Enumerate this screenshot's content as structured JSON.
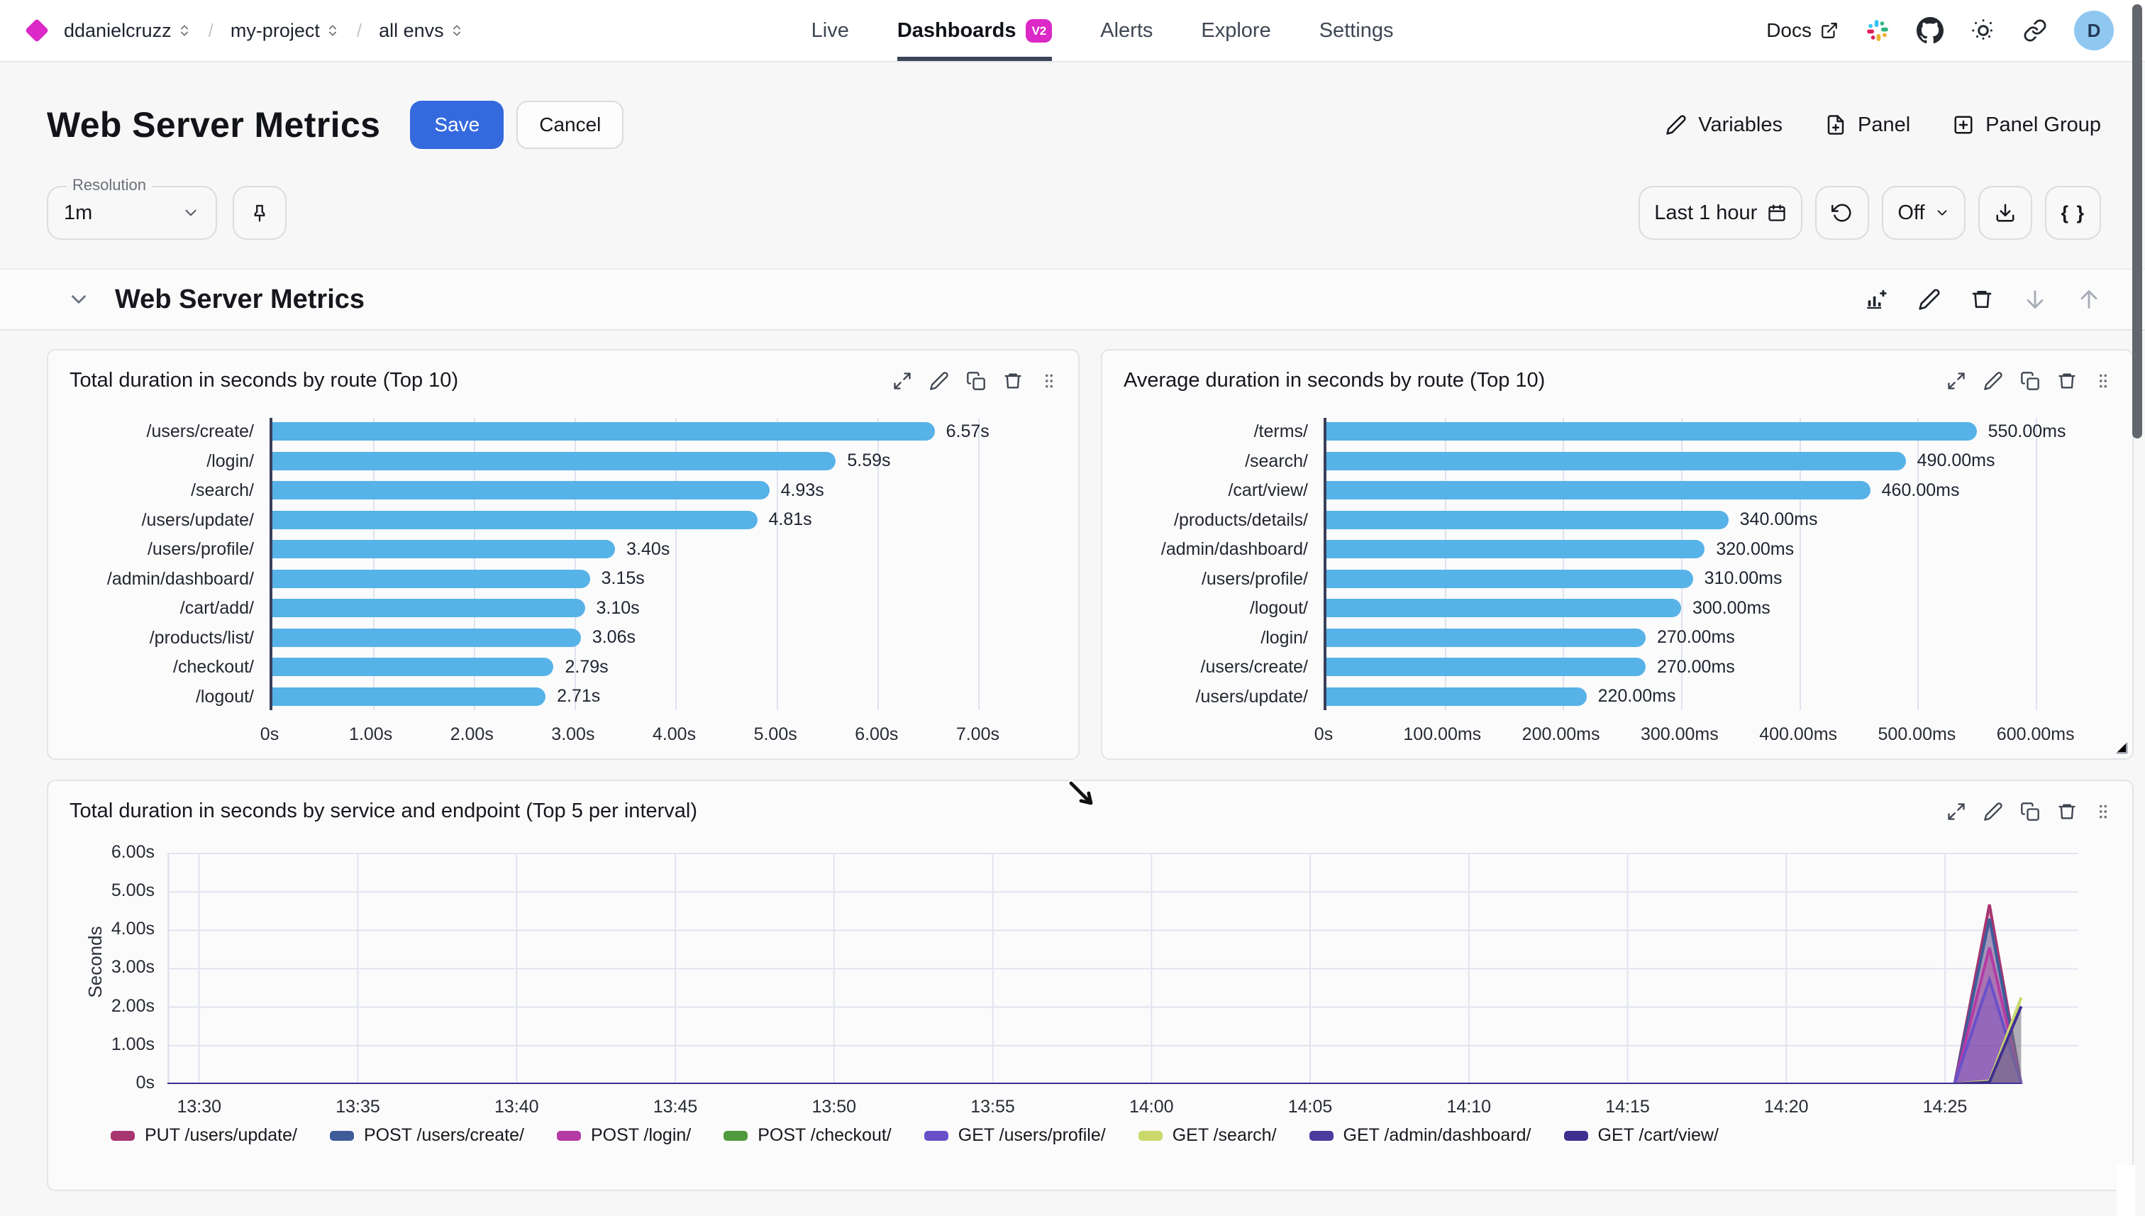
{
  "nav": {
    "breadcrumb": {
      "org": "ddanielcruzz",
      "project": "my-project",
      "env": "all envs",
      "separator": "/"
    },
    "tabs": [
      {
        "label": "Live"
      },
      {
        "label": "Dashboards",
        "badge": "V2",
        "active": true
      },
      {
        "label": "Alerts"
      },
      {
        "label": "Explore"
      },
      {
        "label": "Settings"
      }
    ],
    "docs_label": "Docs",
    "icons": [
      "external-link-icon",
      "slack-icon",
      "github-icon",
      "theme-sun-icon",
      "link-icon"
    ],
    "avatar_letter": "D"
  },
  "header": {
    "title": "Web Server Metrics",
    "save": "Save",
    "cancel": "Cancel",
    "variables": "Variables",
    "panel": "Panel",
    "panel_group": "Panel Group"
  },
  "toolbar": {
    "resolution_label": "Resolution",
    "resolution_value": "1m",
    "time_range": "Last 1 hour",
    "autorefresh": "Off",
    "json_button": "{ }"
  },
  "section": {
    "title": "Web Server Metrics"
  },
  "panels": {
    "p1_title": "Total duration in seconds by route (Top 10)",
    "p2_title": "Average duration in seconds by route (Top 10)",
    "p3_title": "Total duration in seconds by service and endpoint (Top 5 per interval)"
  },
  "colors": {
    "brand_magenta": "#DB28C6",
    "save_blue": "#3569DE",
    "bar_blue": "#57B2E8",
    "gridline": "#DFE3EE",
    "avatar_bg": "#8FC7F1",
    "scrollbar": "#62666D"
  },
  "chart_data": [
    {
      "type": "bar",
      "orientation": "horizontal",
      "title": "Total duration in seconds by route (Top 10)",
      "categories": [
        "/users/create/",
        "/login/",
        "/search/",
        "/users/update/",
        "/users/profile/",
        "/admin/dashboard/",
        "/cart/add/",
        "/products/list/",
        "/checkout/",
        "/logout/"
      ],
      "values": [
        6.57,
        5.59,
        4.93,
        4.81,
        3.4,
        3.15,
        3.1,
        3.06,
        2.79,
        2.71
      ],
      "value_labels": [
        "6.57s",
        "5.59s",
        "4.93s",
        "4.81s",
        "3.40s",
        "3.15s",
        "3.10s",
        "3.06s",
        "2.79s",
        "2.71s"
      ],
      "xmax": 7.6,
      "xticks": [
        {
          "label": "0s",
          "v": 0
        },
        {
          "label": "1.00s",
          "v": 1
        },
        {
          "label": "2.00s",
          "v": 2
        },
        {
          "label": "3.00s",
          "v": 3
        },
        {
          "label": "4.00s",
          "v": 4
        },
        {
          "label": "5.00s",
          "v": 5
        },
        {
          "label": "6.00s",
          "v": 6
        },
        {
          "label": "7.00s",
          "v": 7
        }
      ],
      "bar_color": "#57B2E8",
      "grid": true,
      "unit": "s"
    },
    {
      "type": "bar",
      "orientation": "horizontal",
      "title": "Average duration in seconds by route (Top 10)",
      "categories": [
        "/terms/",
        "/search/",
        "/cart/view/",
        "/products/details/",
        "/admin/dashboard/",
        "/users/profile/",
        "/logout/",
        "/login/",
        "/users/create/",
        "/users/update/"
      ],
      "values": [
        550,
        490,
        460,
        340,
        320,
        310,
        300,
        270,
        270,
        220
      ],
      "value_labels": [
        "550.00ms",
        "490.00ms",
        "460.00ms",
        "340.00ms",
        "320.00ms",
        "310.00ms",
        "300.00ms",
        "270.00ms",
        "270.00ms",
        "220.00ms"
      ],
      "xmax": 648,
      "xticks": [
        {
          "label": "0s",
          "v": 0
        },
        {
          "label": "100.00ms",
          "v": 100
        },
        {
          "label": "200.00ms",
          "v": 200
        },
        {
          "label": "300.00ms",
          "v": 300
        },
        {
          "label": "400.00ms",
          "v": 400
        },
        {
          "label": "500.00ms",
          "v": 500
        },
        {
          "label": "600.00ms",
          "v": 600
        }
      ],
      "bar_color": "#57B2E8",
      "grid": true,
      "unit": "ms"
    },
    {
      "type": "area",
      "title": "Total duration in seconds by service and endpoint (Top 5 per interval)",
      "ylabel": "Seconds",
      "ylim": [
        0,
        6.35
      ],
      "yticks": [
        {
          "label": "0s",
          "v": 0
        },
        {
          "label": "1.00s",
          "v": 1
        },
        {
          "label": "2.00s",
          "v": 2
        },
        {
          "label": "3.00s",
          "v": 3
        },
        {
          "label": "4.00s",
          "v": 4
        },
        {
          "label": "5.00s",
          "v": 5
        },
        {
          "label": "6.00s",
          "v": 6
        }
      ],
      "xlim_minutes": [
        0,
        60.2
      ],
      "xticks": [
        {
          "label": "13:30",
          "m": 1
        },
        {
          "label": "13:35",
          "m": 6
        },
        {
          "label": "13:40",
          "m": 11
        },
        {
          "label": "13:45",
          "m": 16
        },
        {
          "label": "13:50",
          "m": 21
        },
        {
          "label": "13:55",
          "m": 26
        },
        {
          "label": "14:00",
          "m": 31
        },
        {
          "label": "14:05",
          "m": 36
        },
        {
          "label": "14:10",
          "m": 41
        },
        {
          "label": "14:15",
          "m": 46
        },
        {
          "label": "14:20",
          "m": 51
        },
        {
          "label": "14:25",
          "m": 56
        }
      ],
      "grid": true,
      "legend_position": "bottom",
      "fill_opacity": 0.35,
      "series": [
        {
          "name": "PUT /users/update/",
          "color": "#A73570",
          "points": [
            [
              0,
              0
            ],
            [
              56.3,
              0
            ],
            [
              57.4,
              4.67
            ],
            [
              58.4,
              0
            ]
          ]
        },
        {
          "name": "POST /users/create/",
          "color": "#3E5C9A",
          "points": [
            [
              0,
              0
            ],
            [
              56.3,
              0
            ],
            [
              57.4,
              4.3
            ],
            [
              58.4,
              0
            ]
          ]
        },
        {
          "name": "POST /login/",
          "color": "#B43AA4",
          "points": [
            [
              0,
              0
            ],
            [
              56.3,
              0
            ],
            [
              57.4,
              3.55
            ],
            [
              58.4,
              0
            ]
          ]
        },
        {
          "name": "POST /checkout/",
          "color": "#4F9A3D",
          "points": [
            [
              0,
              0
            ],
            [
              58.4,
              0
            ]
          ]
        },
        {
          "name": "GET /users/profile/",
          "color": "#6950C8",
          "points": [
            [
              0,
              0
            ],
            [
              56.3,
              0
            ],
            [
              57.4,
              2.72
            ],
            [
              58.4,
              0
            ]
          ]
        },
        {
          "name": "GET /search/",
          "color": "#CBD96B",
          "points": [
            [
              0,
              0
            ],
            [
              56.3,
              0
            ],
            [
              57.4,
              0.08
            ],
            [
              58.4,
              2.25
            ]
          ]
        },
        {
          "name": "GET /admin/dashboard/",
          "color": "#4C3A9C",
          "points": [
            [
              0,
              0
            ],
            [
              58.4,
              0
            ]
          ]
        },
        {
          "name": "GET /cart/view/",
          "color": "#3F2F8F",
          "points": [
            [
              0,
              0
            ],
            [
              56.3,
              0
            ],
            [
              57.4,
              0.05
            ],
            [
              58.4,
              2.02
            ]
          ]
        }
      ]
    }
  ]
}
